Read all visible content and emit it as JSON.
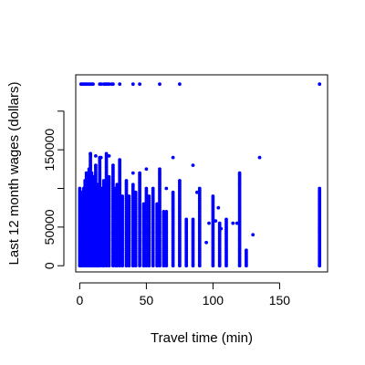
{
  "chart_data": {
    "type": "scatter",
    "title": "",
    "xlabel": "Travel time (min)",
    "ylabel": "Last 12 month wages (dollars)",
    "xlim": [
      -3,
      186
    ],
    "ylim": [
      -8000,
      247000
    ],
    "x_ticks": [
      0,
      50,
      100,
      150
    ],
    "y_ticks": [
      0,
      50000,
      150000
    ],
    "grid": false,
    "point_color": "#0000ff",
    "columns": [
      {
        "x": 0,
        "ymax": 100000
      },
      {
        "x": 1,
        "ymax": 85000
      },
      {
        "x": 2,
        "ymax": 95000
      },
      {
        "x": 3,
        "ymax": 100000
      },
      {
        "x": 4,
        "ymax": 110000
      },
      {
        "x": 5,
        "ymax": 120000
      },
      {
        "x": 6,
        "ymax": 115000
      },
      {
        "x": 7,
        "ymax": 125000
      },
      {
        "x": 8,
        "ymax": 145000
      },
      {
        "x": 9,
        "ymax": 120000
      },
      {
        "x": 10,
        "ymax": 110000
      },
      {
        "x": 11,
        "ymax": 115000
      },
      {
        "x": 12,
        "ymax": 130000
      },
      {
        "x": 13,
        "ymax": 105000
      },
      {
        "x": 14,
        "ymax": 95000
      },
      {
        "x": 15,
        "ymax": 140000
      },
      {
        "x": 17,
        "ymax": 100000
      },
      {
        "x": 18,
        "ymax": 110000
      },
      {
        "x": 20,
        "ymax": 145000
      },
      {
        "x": 22,
        "ymax": 115000
      },
      {
        "x": 25,
        "ymax": 130000
      },
      {
        "x": 27,
        "ymax": 100000
      },
      {
        "x": 28,
        "ymax": 105000
      },
      {
        "x": 30,
        "ymax": 135000
      },
      {
        "x": 32,
        "ymax": 90000
      },
      {
        "x": 35,
        "ymax": 110000
      },
      {
        "x": 37,
        "ymax": 90000
      },
      {
        "x": 40,
        "ymax": 105000
      },
      {
        "x": 42,
        "ymax": 95000
      },
      {
        "x": 45,
        "ymax": 120000
      },
      {
        "x": 48,
        "ymax": 80000
      },
      {
        "x": 50,
        "ymax": 100000
      },
      {
        "x": 52,
        "ymax": 90000
      },
      {
        "x": 55,
        "ymax": 100000
      },
      {
        "x": 58,
        "ymax": 80000
      },
      {
        "x": 60,
        "ymax": 125000
      },
      {
        "x": 63,
        "ymax": 70000
      },
      {
        "x": 65,
        "ymax": 70000
      },
      {
        "x": 70,
        "ymax": 95000
      },
      {
        "x": 75,
        "ymax": 110000
      },
      {
        "x": 80,
        "ymax": 60000
      },
      {
        "x": 85,
        "ymax": 60000
      },
      {
        "x": 90,
        "ymax": 100000
      },
      {
        "x": 100,
        "ymax": 90000
      },
      {
        "x": 105,
        "ymax": 55000
      },
      {
        "x": 110,
        "ymax": 60000
      },
      {
        "x": 120,
        "ymax": 120000
      },
      {
        "x": 125,
        "ymax": 20000
      },
      {
        "x": 180,
        "ymax": 100000
      }
    ],
    "scattered_points": [
      {
        "x": 8,
        "y": 145000
      },
      {
        "x": 12,
        "y": 142000
      },
      {
        "x": 16,
        "y": 140000
      },
      {
        "x": 22,
        "y": 142000
      },
      {
        "x": 30,
        "y": 137000
      },
      {
        "x": 70,
        "y": 140000
      },
      {
        "x": 85,
        "y": 130000
      },
      {
        "x": 65,
        "y": 100000
      },
      {
        "x": 50,
        "y": 125000
      },
      {
        "x": 40,
        "y": 120000
      },
      {
        "x": 130,
        "y": 40000
      },
      {
        "x": 135,
        "y": 140000
      },
      {
        "x": 115,
        "y": 55000
      },
      {
        "x": 95,
        "y": 30000
      },
      {
        "x": 97,
        "y": 55000
      },
      {
        "x": 106,
        "y": 48000
      },
      {
        "x": 102,
        "y": 58000
      },
      {
        "x": 88,
        "y": 95000
      },
      {
        "x": 104,
        "y": 75000
      },
      {
        "x": 118,
        "y": 55000
      }
    ],
    "top_points": [
      {
        "x": 1,
        "y": 235000
      },
      {
        "x": 2,
        "y": 235000
      },
      {
        "x": 3,
        "y": 235000
      },
      {
        "x": 4,
        "y": 235000
      },
      {
        "x": 5,
        "y": 235000
      },
      {
        "x": 6,
        "y": 235000
      },
      {
        "x": 7,
        "y": 235000
      },
      {
        "x": 8,
        "y": 235000
      },
      {
        "x": 9,
        "y": 235000
      },
      {
        "x": 10,
        "y": 235000
      },
      {
        "x": 15,
        "y": 235000
      },
      {
        "x": 16,
        "y": 235000
      },
      {
        "x": 18,
        "y": 235000
      },
      {
        "x": 19,
        "y": 235000
      },
      {
        "x": 20,
        "y": 235000
      },
      {
        "x": 21,
        "y": 235000
      },
      {
        "x": 22,
        "y": 235000
      },
      {
        "x": 24,
        "y": 235000
      },
      {
        "x": 25,
        "y": 235000
      },
      {
        "x": 30,
        "y": 235000
      },
      {
        "x": 40,
        "y": 235000
      },
      {
        "x": 45,
        "y": 235000
      },
      {
        "x": 60,
        "y": 235000
      },
      {
        "x": 75,
        "y": 235000
      },
      {
        "x": 180,
        "y": 235000
      }
    ]
  }
}
